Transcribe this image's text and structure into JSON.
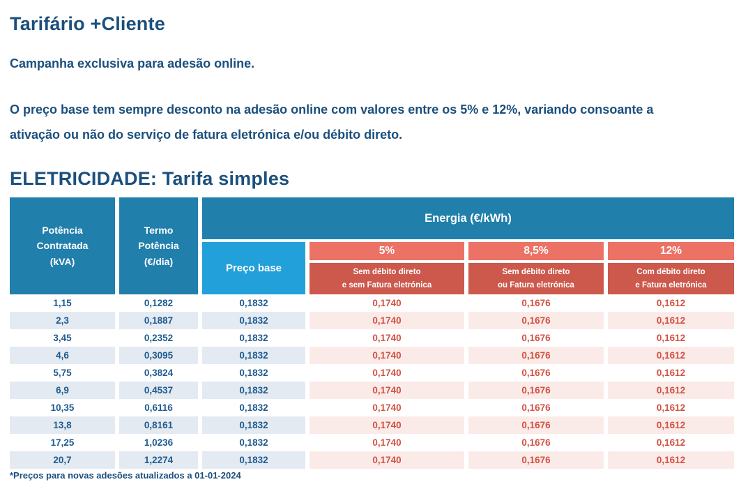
{
  "page": {
    "title": "Tarifário +Cliente",
    "subtitle": "Campanha exclusiva para adesão online.",
    "intro": "O preço base tem sempre desconto na adesão online com valores entre os 5% e 12%, variando consoante a\nativação ou não do serviço de fatura eletrónica e/ou débito direto.",
    "section_heading": "ELETRICIDADE: Tarifa simples",
    "footnote": "*Preços para novas adesões atualizados a 01-01-2024"
  },
  "colors": {
    "heading_text": "#1B4F7D",
    "header_teal": "#207FAB",
    "price_base_blue": "#22A0D9",
    "discount_salmon": "#EC7265",
    "discount_dark_red": "#CC594C",
    "row_alt_blue": "#E3EAF2",
    "row_alt_pink": "#FBEBE8",
    "value_blue_text": "#1E5B8F",
    "value_red_text": "#D25142"
  },
  "table": {
    "headers": {
      "potencia_contratada": "Potência\nContratada\n(kVA)",
      "termo_potencia": "Termo\nPotência\n(€/dia)",
      "energia": "Energia (€/kWh)",
      "preco_base": "Preço base",
      "discount_columns": [
        {
          "percent": "5%",
          "description": "Sem débito direto\ne sem Fatura eletrónica"
        },
        {
          "percent": "8,5%",
          "description": "Sem débito direto\nou Fatura eletrónica"
        },
        {
          "percent": "12%",
          "description": "Com débito direto\ne Fatura eletrónica"
        }
      ]
    },
    "rows": [
      [
        "1,15",
        "0,1282",
        "0,1832",
        "0,1740",
        "0,1676",
        "0,1612"
      ],
      [
        "2,3",
        "0,1887",
        "0,1832",
        "0,1740",
        "0,1676",
        "0,1612"
      ],
      [
        "3,45",
        "0,2352",
        "0,1832",
        "0,1740",
        "0,1676",
        "0,1612"
      ],
      [
        "4,6",
        "0,3095",
        "0,1832",
        "0,1740",
        "0,1676",
        "0,1612"
      ],
      [
        "5,75",
        "0,3824",
        "0,1832",
        "0,1740",
        "0,1676",
        "0,1612"
      ],
      [
        "6,9",
        "0,4537",
        "0,1832",
        "0,1740",
        "0,1676",
        "0,1612"
      ],
      [
        "10,35",
        "0,6116",
        "0,1832",
        "0,1740",
        "0,1676",
        "0,1612"
      ],
      [
        "13,8",
        "0,8161",
        "0,1832",
        "0,1740",
        "0,1676",
        "0,1612"
      ],
      [
        "17,25",
        "1,0236",
        "0,1832",
        "0,1740",
        "0,1676",
        "0,1612"
      ],
      [
        "20,7",
        "1,2274",
        "0,1832",
        "0,1740",
        "0,1676",
        "0,1612"
      ]
    ]
  }
}
